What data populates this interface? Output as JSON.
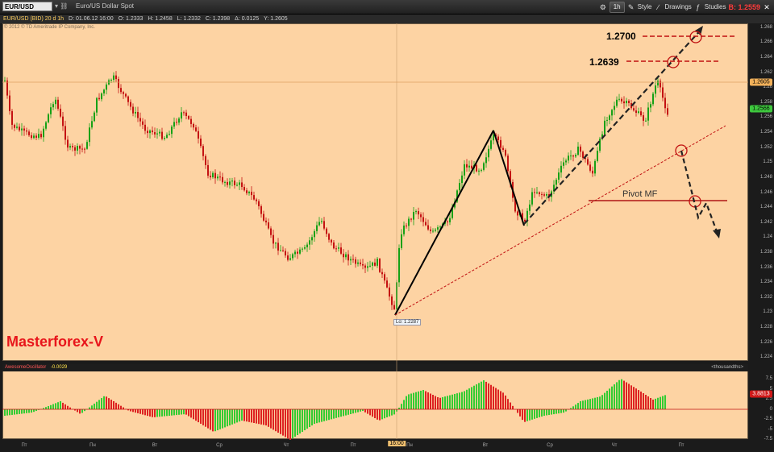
{
  "toolbar": {
    "symbol_value": "EUR/USD",
    "description": "Euro/US Dollar Spot",
    "timeframe_label": "1h",
    "style_label": "Style",
    "drawings_label": "Drawings",
    "studies_label": "Studies",
    "bid_label": "B: 1.2559",
    "icons": [
      "link-icon",
      "settings-icon",
      "style-icon",
      "drawings-icon",
      "studies-icon",
      "close-icon"
    ]
  },
  "infobar": {
    "series": "EUR/USD (BID) 20 d 1h",
    "date": "D: 01.06.12 16:00",
    "open": "O: 1.2333",
    "high": "H: 1.2458",
    "low": "L: 1.2332",
    "close": "C: 1.2398",
    "change": "Δ: 0.0125",
    "y": "Y: 1.2605"
  },
  "copyright": "© 2012 © TD Ameritrade IP Company, Inc.",
  "brand": "Masterforex-V",
  "annotations": {
    "level_1": "1.2700",
    "level_2": "1.2639",
    "pivot": "Pivot MF",
    "low_label": "Lo: 1.2287"
  },
  "price_axis": {
    "ticks": [
      "1.268",
      "1.266",
      "1.264",
      "1.262",
      "1.26",
      "1.258",
      "1.256",
      "1.254",
      "1.252",
      "1.25",
      "1.248",
      "1.246",
      "1.244",
      "1.242",
      "1.24",
      "1.238",
      "1.236",
      "1.234",
      "1.232",
      "1.23",
      "1.228",
      "1.226",
      "1.224"
    ],
    "current_tag": "1.2605",
    "last_tag": "1.2566",
    "bid_color": "#ff3b3b"
  },
  "oscillator": {
    "name": "AwesomeOscillator",
    "value": "-0.0029",
    "unit": "<thousandths>",
    "ticks": [
      "7.5",
      "5",
      "2.5",
      "0",
      "-2.5",
      "-5",
      "-7.5"
    ],
    "value_tag": "3.8813",
    "up_color": "#33cc33",
    "down_color": "#dd2222"
  },
  "time_axis": {
    "labels": [
      "Пт",
      "Пн",
      "Вт",
      "Ср",
      "Чт",
      "Пт",
      "Пн",
      "Вт",
      "Ср",
      "Чт",
      "Пт"
    ],
    "cursor_time": "16:00"
  }
}
